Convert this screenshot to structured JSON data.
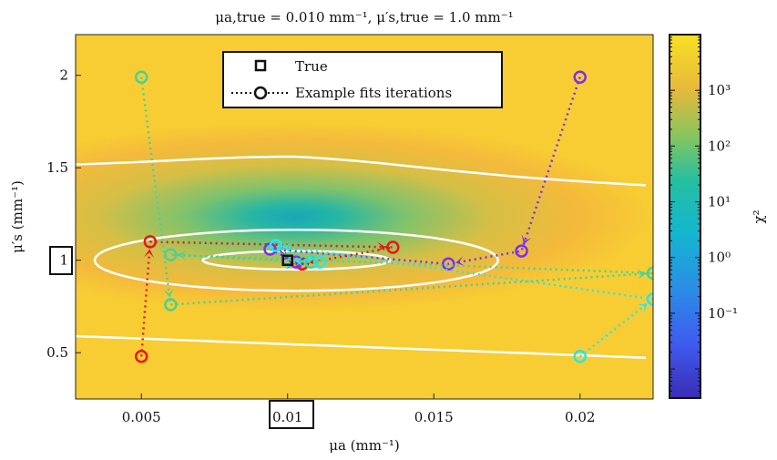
{
  "chart_data": {
    "type": "heatmap",
    "title": "μa,true = 0.010 mm⁻¹, μ′s,true = 1.0 mm⁻¹",
    "xlabel": "μa (mm⁻¹)",
    "ylabel": "μ′s (mm⁻¹)",
    "xlim": [
      0.00275,
      0.0225
    ],
    "ylim": [
      0.25,
      2.22
    ],
    "x_ticks": [
      {
        "value": 0.005,
        "label": "0.005"
      },
      {
        "value": 0.01,
        "label": "0.01"
      },
      {
        "value": 0.015,
        "label": "0.015"
      },
      {
        "value": 0.02,
        "label": "0.02"
      }
    ],
    "y_ticks": [
      {
        "value": 0.5,
        "label": "0.5"
      },
      {
        "value": 1.0,
        "label": "1"
      },
      {
        "value": 1.5,
        "label": "1.5"
      },
      {
        "value": 2.0,
        "label": "2"
      }
    ],
    "colorbar": {
      "label": "χ²",
      "scale": "log",
      "range": [
        0.003,
        10000
      ],
      "ticks": [
        {
          "value": 0.1,
          "label": "10⁻¹"
        },
        {
          "value": 1,
          "label": "10⁰"
        },
        {
          "value": 10,
          "label": "10¹"
        },
        {
          "value": 100,
          "label": "10²"
        },
        {
          "value": 1000,
          "label": "10³"
        }
      ]
    },
    "legend": {
      "placement": "top-center",
      "entries": [
        "True",
        "Example fits iterations"
      ]
    },
    "boxed_labels": {
      "x": "0.01",
      "y": "1"
    },
    "true_point": {
      "x": 0.01,
      "y": 1.0
    },
    "series": [
      {
        "color": "#e31a1c",
        "points": [
          [
            0.005,
            0.48
          ],
          [
            0.0053,
            1.1
          ],
          [
            0.0136,
            1.07
          ],
          [
            0.0105,
            0.98
          ],
          [
            0.0105,
            0.98
          ]
        ]
      },
      {
        "color": "#7b2ff7",
        "points": [
          [
            0.02,
            1.99
          ],
          [
            0.018,
            1.05
          ],
          [
            0.0155,
            0.98
          ],
          [
            0.0094,
            1.06
          ],
          [
            0.0103,
            0.99
          ],
          [
            0.01,
            1.0
          ]
        ]
      },
      {
        "color": "#44d49a",
        "points": [
          [
            0.005,
            1.99
          ],
          [
            0.006,
            0.76
          ],
          [
            0.0225,
            0.93
          ],
          [
            0.006,
            1.03
          ],
          [
            0.0108,
            0.99
          ],
          [
            0.01,
            1.0
          ]
        ]
      },
      {
        "color": "#29e6ea",
        "points": [
          [
            0.02,
            0.48
          ],
          [
            0.0225,
            0.79
          ],
          [
            0.0096,
            1.08
          ],
          [
            0.0111,
            0.99
          ],
          [
            0.01,
            1.0
          ]
        ]
      }
    ],
    "contours": [
      {
        "level": "outer",
        "color": "#ffffff"
      },
      {
        "level": "middle",
        "color": "#ffffff"
      },
      {
        "level": "inner",
        "color": "#ffffff"
      }
    ]
  }
}
